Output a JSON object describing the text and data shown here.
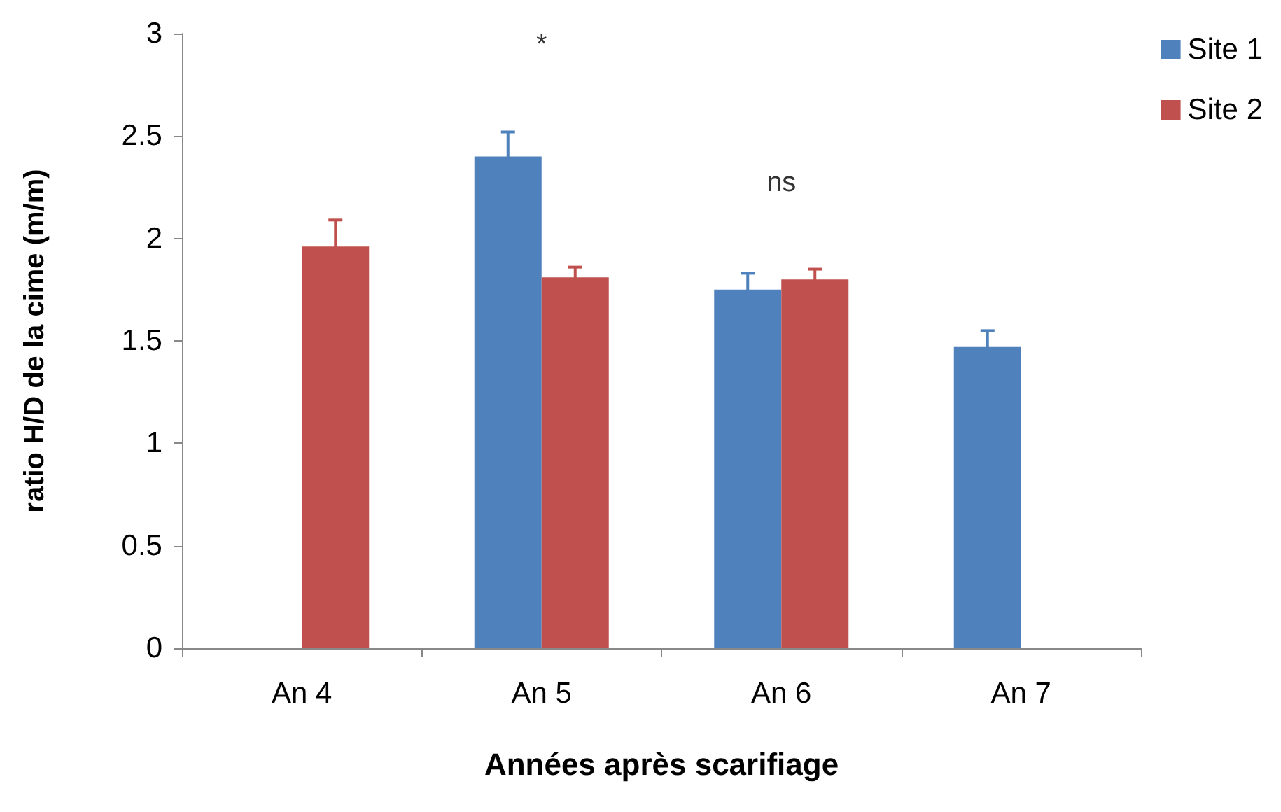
{
  "chart_data": {
    "type": "bar",
    "xlabel": "Années après scarifiage",
    "ylabel": "ratio H/D de la cime (m/m)",
    "categories": [
      "An 4",
      "An 5",
      "An 6",
      "An 7"
    ],
    "series": [
      {
        "name": "Site 1",
        "color": "#4f81bd",
        "values": [
          null,
          2.4,
          1.75,
          1.47
        ],
        "errors": [
          null,
          0.12,
          0.08,
          0.08
        ]
      },
      {
        "name": "Site 2",
        "color": "#c0504d",
        "values": [
          1.96,
          1.81,
          1.8,
          null
        ],
        "errors": [
          0.13,
          0.05,
          0.05,
          null
        ]
      }
    ],
    "ylim": [
      0,
      3
    ],
    "yticks": [
      0,
      0.5,
      1,
      1.5,
      2,
      2.5,
      3
    ],
    "annotations": [
      "*",
      "ns"
    ],
    "grid": false,
    "legend": "top right"
  }
}
